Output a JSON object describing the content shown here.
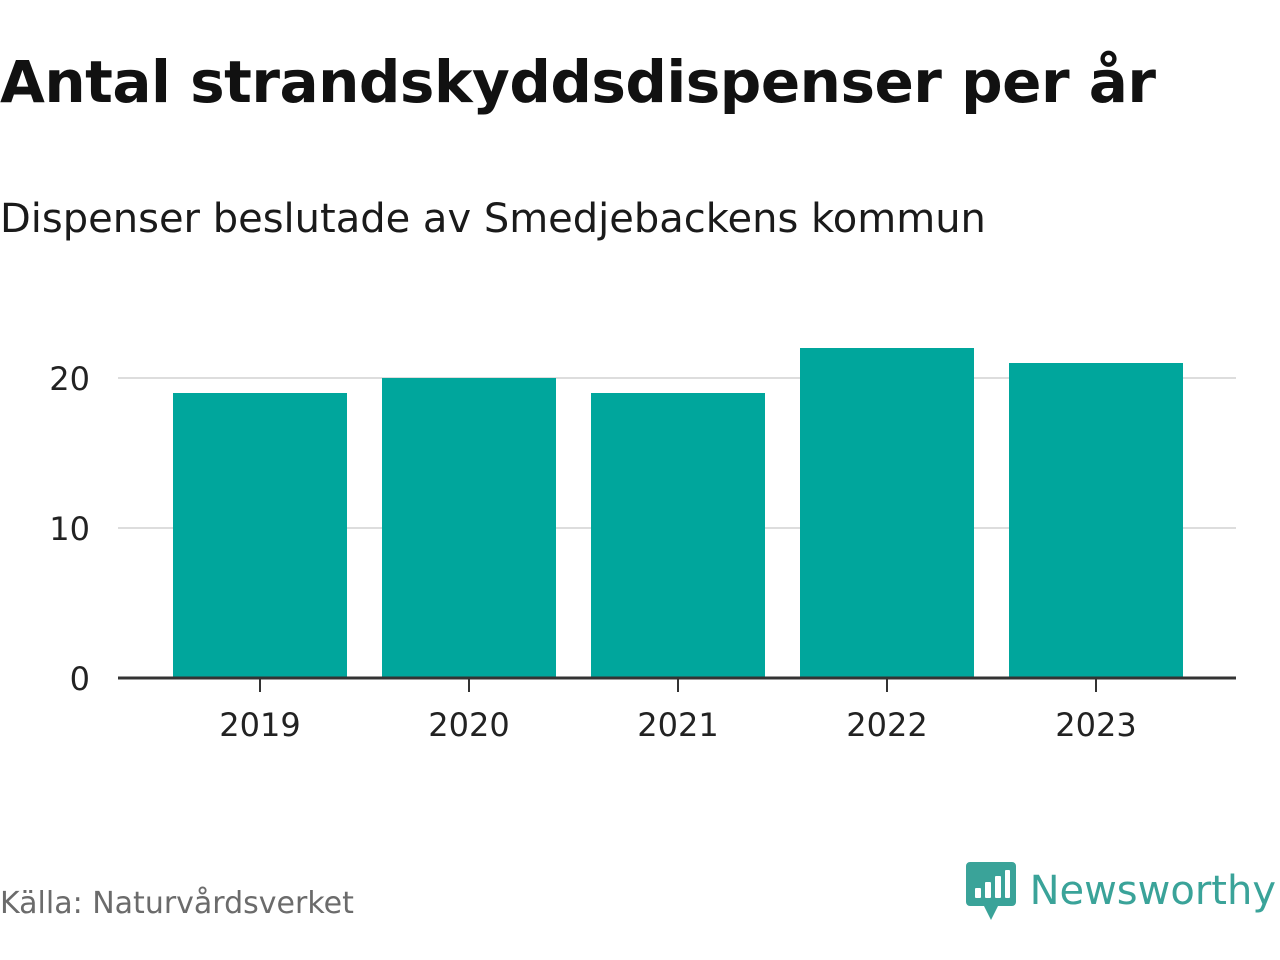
{
  "header": {
    "title": "Antal strandskyddsdispenser per år",
    "subtitle": "Dispenser beslutade av Smedjebackens kommun"
  },
  "footer": {
    "source": "Källa: Naturvårdsverket",
    "brand": "Newsworthy",
    "brand_icon": "chart-bubble-icon"
  },
  "colors": {
    "bar": "#00a69c",
    "grid": "#dddddd",
    "axis": "#333333",
    "brand": "#3aa399"
  },
  "chart_data": {
    "type": "bar",
    "title": "Antal strandskyddsdispenser per år",
    "subtitle": "Dispenser beslutade av Smedjebackens kommun",
    "categories": [
      "2019",
      "2020",
      "2021",
      "2022",
      "2023"
    ],
    "values": [
      19,
      20,
      19,
      22,
      21
    ],
    "xlabel": "",
    "ylabel": "",
    "ylim": [
      0,
      22
    ],
    "yticks": [
      0,
      10,
      20
    ],
    "grid": true,
    "legend": "none"
  }
}
